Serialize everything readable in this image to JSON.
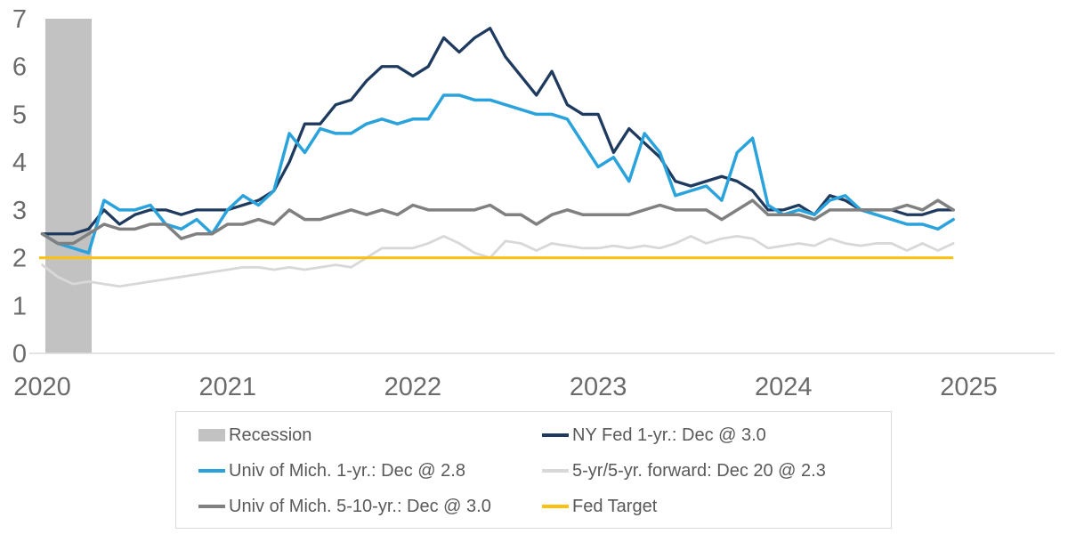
{
  "colors": {
    "background": "#ffffff",
    "axis_line": "#dcdcdc",
    "axis_text": "#6b6b6b",
    "legend_text": "#595959",
    "legend_border": "#d9d9d9",
    "navy": "#1f3a5f",
    "light_blue": "#2aa2db",
    "gray": "#808080",
    "light_gray": "#d8d8d8",
    "yellow": "#fdc10d",
    "recession_gray": "#c2c2c2"
  },
  "legend": {
    "items": [
      {
        "key": "recession",
        "label": "Recession",
        "swatch": "box",
        "color": "#c2c2c2"
      },
      {
        "key": "ny-fed-1yr",
        "label": "NY Fed 1-yr.: Dec @ 3.0",
        "swatch": "line",
        "color": "#1f3a5f"
      },
      {
        "key": "umich-1yr",
        "label": "Univ of Mich. 1-yr.: Dec @ 2.8",
        "swatch": "line",
        "color": "#2aa2db"
      },
      {
        "key": "5yr5yr-forward",
        "label": "5-yr/5-yr. forward: Dec 20 @ 2.3",
        "swatch": "line",
        "color": "#d8d8d8"
      },
      {
        "key": "umich-5-10yr",
        "label": "Univ of Mich. 5-10-yr.: Dec @ 3.0",
        "swatch": "line",
        "color": "#808080"
      },
      {
        "key": "fed-target",
        "label": "Fed Target",
        "swatch": "line",
        "color": "#fdc10d"
      }
    ]
  },
  "chart_data": {
    "type": "line",
    "x_start": "2020-01",
    "x_end": "2024-12",
    "frequency": "monthly",
    "ylim": [
      0,
      7
    ],
    "yticks": [
      0,
      1,
      2,
      3,
      4,
      5,
      6,
      7
    ],
    "xticks": [
      2020,
      2021,
      2022,
      2023,
      2024,
      2025
    ],
    "grid": false,
    "legend_position": "bottom",
    "recession_band": {
      "label": "Recession",
      "start": "2020-02",
      "end": "2020-04",
      "start_month": 0.2,
      "end_month": 3.2,
      "color": "#c2c2c2"
    },
    "fed_target": {
      "label": "Fed Target",
      "value": 2.0,
      "color": "#fdc10d",
      "width": 3
    },
    "series": [
      {
        "key": "ny-fed-1yr",
        "name": "NY Fed 1-yr.: Dec @ 3.0",
        "color": "#1f3a5f",
        "width": 3.3,
        "values": [
          2.5,
          2.5,
          2.5,
          2.6,
          3.0,
          2.7,
          2.9,
          3.0,
          3.0,
          2.9,
          3.0,
          3.0,
          3.0,
          3.1,
          3.2,
          3.4,
          4.0,
          4.8,
          4.8,
          5.2,
          5.3,
          5.7,
          6.0,
          6.0,
          5.8,
          6.0,
          6.6,
          6.3,
          6.6,
          6.8,
          6.2,
          5.8,
          5.4,
          5.9,
          5.2,
          5.0,
          5.0,
          4.2,
          4.7,
          4.4,
          4.1,
          3.6,
          3.5,
          3.6,
          3.7,
          3.6,
          3.4,
          3.0,
          3.0,
          3.1,
          2.9,
          3.3,
          3.2,
          3.0,
          3.0,
          3.0,
          2.9,
          2.9,
          3.0,
          3.0
        ]
      },
      {
        "key": "umich-1yr",
        "name": "Univ of Mich. 1-yr.: Dec @ 2.8",
        "color": "#2aa2db",
        "width": 3.5,
        "values": [
          2.5,
          2.3,
          2.2,
          2.1,
          3.2,
          3.0,
          3.0,
          3.1,
          2.7,
          2.6,
          2.8,
          2.5,
          3.0,
          3.3,
          3.1,
          3.4,
          4.6,
          4.2,
          4.7,
          4.6,
          4.6,
          4.8,
          4.9,
          4.8,
          4.9,
          4.9,
          5.4,
          5.4,
          5.3,
          5.3,
          5.2,
          5.1,
          5.0,
          5.0,
          4.9,
          4.4,
          3.9,
          4.1,
          3.6,
          4.6,
          4.2,
          3.3,
          3.4,
          3.5,
          3.2,
          4.2,
          4.5,
          3.1,
          2.9,
          3.0,
          2.9,
          3.2,
          3.3,
          3.0,
          2.9,
          2.8,
          2.7,
          2.7,
          2.6,
          2.8
        ]
      },
      {
        "key": "5yr5yr-forward",
        "name": "5-yr/5-yr. forward: Dec 20 @ 2.3",
        "color": "#d8d8d8",
        "width": 2.8,
        "values": [
          1.85,
          1.6,
          1.45,
          1.5,
          1.45,
          1.4,
          1.45,
          1.5,
          1.55,
          1.6,
          1.65,
          1.7,
          1.75,
          1.8,
          1.8,
          1.75,
          1.8,
          1.75,
          1.8,
          1.85,
          1.8,
          2.0,
          2.2,
          2.2,
          2.2,
          2.3,
          2.45,
          2.3,
          2.1,
          2.0,
          2.35,
          2.3,
          2.15,
          2.3,
          2.25,
          2.2,
          2.2,
          2.25,
          2.2,
          2.25,
          2.2,
          2.3,
          2.45,
          2.3,
          2.4,
          2.45,
          2.4,
          2.2,
          2.25,
          2.3,
          2.25,
          2.4,
          2.3,
          2.25,
          2.3,
          2.3,
          2.15,
          2.3,
          2.15,
          2.3
        ]
      },
      {
        "key": "umich-5-10yr",
        "name": "Univ of Mich. 5-10-yr.: Dec @ 3.0",
        "color": "#808080",
        "width": 3.5,
        "values": [
          2.5,
          2.3,
          2.3,
          2.5,
          2.7,
          2.6,
          2.6,
          2.7,
          2.7,
          2.4,
          2.5,
          2.5,
          2.7,
          2.7,
          2.8,
          2.7,
          3.0,
          2.8,
          2.8,
          2.9,
          3.0,
          2.9,
          3.0,
          2.9,
          3.1,
          3.0,
          3.0,
          3.0,
          3.0,
          3.1,
          2.9,
          2.9,
          2.7,
          2.9,
          3.0,
          2.9,
          2.9,
          2.9,
          2.9,
          3.0,
          3.1,
          3.0,
          3.0,
          3.0,
          2.8,
          3.0,
          3.2,
          2.9,
          2.9,
          2.9,
          2.8,
          3.0,
          3.0,
          3.0,
          3.0,
          3.0,
          3.1,
          3.0,
          3.2,
          3.0
        ]
      }
    ]
  }
}
